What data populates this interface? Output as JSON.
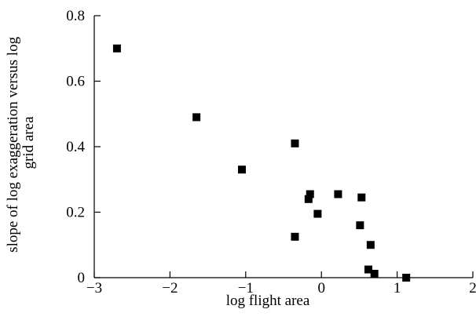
{
  "chart_data": {
    "type": "scatter",
    "title": "",
    "xlabel": "log flight area",
    "ylabel_lines": [
      "slope of log exaggeration versus log",
      "grid area"
    ],
    "xlim": [
      -3,
      2
    ],
    "ylim": [
      0,
      0.8
    ],
    "x_ticks": [
      -3,
      -2,
      -1,
      0,
      1,
      2
    ],
    "y_ticks": [
      0,
      0.2,
      0.4,
      0.6,
      0.8
    ],
    "x_tick_labels": [
      "−3",
      "−2",
      "−1",
      "0",
      "1",
      "2"
    ],
    "y_tick_labels": [
      "0",
      "0.2",
      "0.4",
      "0.6",
      "0.8"
    ],
    "grid": false,
    "legend": "none",
    "marker": "square",
    "marker_color": "#000000",
    "points": [
      {
        "x": -2.7,
        "y": 0.7
      },
      {
        "x": -1.65,
        "y": 0.49
      },
      {
        "x": -1.05,
        "y": 0.33
      },
      {
        "x": -0.35,
        "y": 0.41
      },
      {
        "x": -0.35,
        "y": 0.125
      },
      {
        "x": -0.15,
        "y": 0.255
      },
      {
        "x": -0.17,
        "y": 0.24
      },
      {
        "x": -0.05,
        "y": 0.195
      },
      {
        "x": 0.22,
        "y": 0.255
      },
      {
        "x": 0.53,
        "y": 0.245
      },
      {
        "x": 0.51,
        "y": 0.16
      },
      {
        "x": 0.65,
        "y": 0.1
      },
      {
        "x": 0.62,
        "y": 0.025
      },
      {
        "x": 0.7,
        "y": 0.012
      },
      {
        "x": 1.12,
        "y": 0.0
      }
    ]
  }
}
